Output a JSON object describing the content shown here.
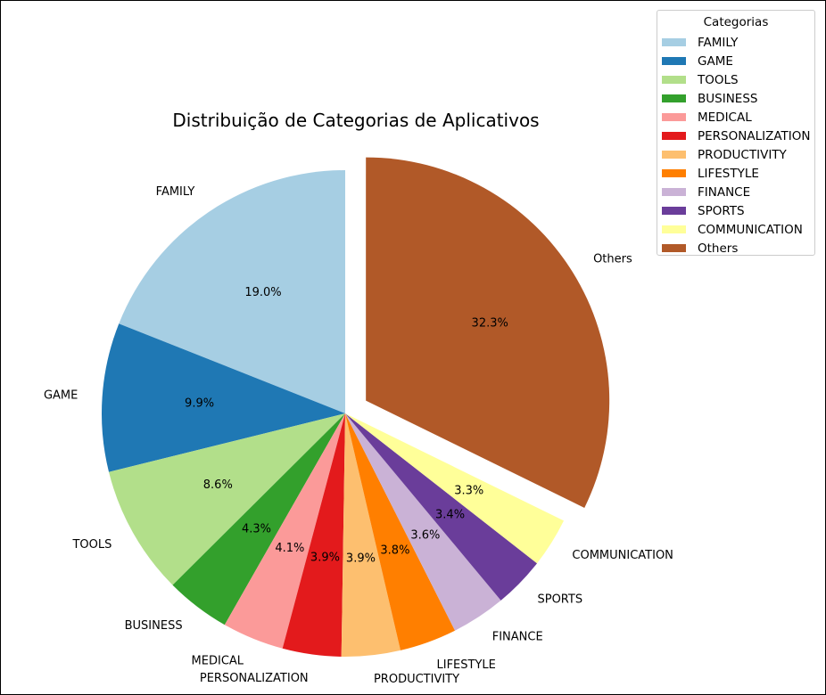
{
  "chart_data": {
    "type": "pie",
    "title": "Distribuição de Categorias de Aplicativos",
    "legend_title": "Categorias",
    "legend_placement": "top-right",
    "start_angle_deg": 90,
    "direction": "counterclockwise",
    "categories": [
      "FAMILY",
      "GAME",
      "TOOLS",
      "BUSINESS",
      "MEDICAL",
      "PERSONALIZATION",
      "PRODUCTIVITY",
      "LIFESTYLE",
      "FINANCE",
      "SPORTS",
      "COMMUNICATION",
      "Others"
    ],
    "values": [
      19.0,
      9.9,
      8.6,
      4.3,
      4.1,
      3.9,
      3.9,
      3.8,
      3.6,
      3.4,
      3.3,
      32.3
    ],
    "labels": [
      "19.0%",
      "9.9%",
      "8.6%",
      "4.3%",
      "4.1%",
      "3.9%",
      "3.9%",
      "3.8%",
      "3.6%",
      "3.4%",
      "3.3%",
      "32.3%"
    ],
    "colors": [
      "#a6cee3",
      "#1f78b4",
      "#b2df8a",
      "#33a02c",
      "#fb9a99",
      "#e31a1c",
      "#fdbf6f",
      "#ff7f00",
      "#cab2d6",
      "#6a3d9a",
      "#ffff99",
      "#b15928"
    ],
    "explode": [
      0,
      0,
      0,
      0,
      0,
      0,
      0,
      0,
      0,
      0,
      0,
      0.1
    ]
  }
}
